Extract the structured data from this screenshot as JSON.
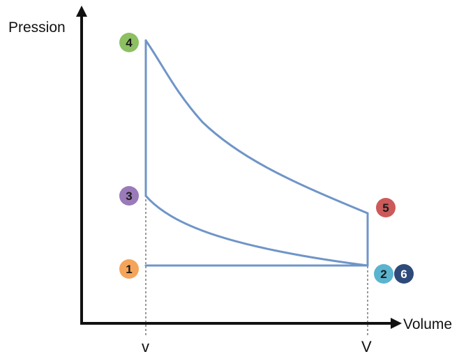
{
  "axes": {
    "y_label": "Pression",
    "x_label": "Volume"
  },
  "ticks": {
    "small_volume": "v",
    "large_volume": "V"
  },
  "states": [
    {
      "label": "1",
      "color": "#f4a55a"
    },
    {
      "label": "2",
      "color": "#5ab4d0"
    },
    {
      "label": "3",
      "color": "#9a7ab8"
    },
    {
      "label": "4",
      "color": "#8cc063"
    },
    {
      "label": "5",
      "color": "#cc5a5a"
    },
    {
      "label": "6",
      "color": "#2e4a7a"
    }
  ],
  "colors": {
    "cycle_line": "#6f95c8",
    "axis": "#111111",
    "guide": "#333333"
  }
}
